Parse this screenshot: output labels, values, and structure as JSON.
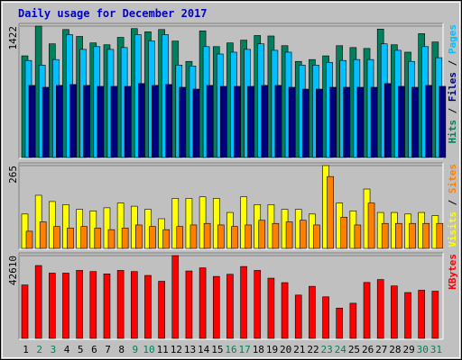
{
  "chart_data": {
    "type": "bar",
    "title": "Daily usage for December 2017",
    "categories": [
      "1",
      "2",
      "3",
      "4",
      "5",
      "6",
      "7",
      "8",
      "9",
      "10",
      "11",
      "12",
      "13",
      "14",
      "15",
      "16",
      "17",
      "18",
      "19",
      "20",
      "21",
      "22",
      "23",
      "24",
      "25",
      "26",
      "27",
      "28",
      "29",
      "30",
      "31"
    ],
    "weekend_days": [
      "2",
      "3",
      "9",
      "10",
      "16",
      "17",
      "23",
      "24",
      "30",
      "31"
    ],
    "panels": [
      {
        "id": "hits",
        "ymax_label": "1422",
        "ylim": [
          0,
          1422
        ],
        "legend": [
          {
            "label": "Pages",
            "color": "#00c0ff"
          },
          {
            "label": "Files",
            "color": "#00007f"
          },
          {
            "label": "Hits",
            "color": "#00805c"
          }
        ],
        "series": [
          {
            "name": "Hits",
            "color": "#00805c",
            "values": [
              1100,
              1422,
              1230,
              1385,
              1310,
              1240,
              1220,
              1300,
              1395,
              1360,
              1385,
              1260,
              1040,
              1370,
              1200,
              1240,
              1270,
              1320,
              1315,
              1210,
              1040,
              1060,
              1100,
              1210,
              1190,
              1180,
              1390,
              1220,
              1140,
              1340,
              1250
            ]
          },
          {
            "name": "Pages",
            "color": "#00c0ff",
            "values": [
              1050,
              1000,
              1060,
              1330,
              1170,
              1200,
              1170,
              1190,
              1330,
              1260,
              1330,
              1000,
              990,
              1200,
              1120,
              1140,
              1170,
              1230,
              1160,
              1140,
              1000,
              1000,
              1030,
              1050,
              1060,
              1060,
              1230,
              1160,
              1040,
              1200,
              1080
            ]
          },
          {
            "name": "Files",
            "color": "#00007f",
            "values": [
              780,
              760,
              780,
              790,
              780,
              770,
              770,
              770,
              800,
              780,
              790,
              760,
              740,
              780,
              770,
              770,
              770,
              780,
              780,
              760,
              740,
              740,
              760,
              760,
              760,
              760,
              800,
              770,
              760,
              780,
              770
            ]
          }
        ]
      },
      {
        "id": "visits",
        "ymax_label": "265",
        "ylim": [
          0,
          265
        ],
        "legend": [
          {
            "label": "Sites",
            "color": "#ff8000"
          },
          {
            "label": "Visits",
            "color": "#ffff00"
          }
        ],
        "series": [
          {
            "name": "Visits",
            "color": "#ffff00",
            "values": [
              110,
              170,
              150,
              140,
              125,
              120,
              130,
              145,
              135,
              125,
              95,
              160,
              160,
              165,
              160,
              115,
              165,
              140,
              140,
              125,
              125,
              110,
              265,
              145,
              120,
              190,
              115,
              115,
              110,
              115,
              105
            ]
          },
          {
            "name": "Sites",
            "color": "#ff8000",
            "values": [
              55,
              85,
              70,
              65,
              70,
              65,
              60,
              65,
              75,
              70,
              60,
              70,
              75,
              80,
              75,
              70,
              75,
              90,
              80,
              85,
              90,
              75,
              230,
              100,
              75,
              145,
              80,
              80,
              80,
              80,
              80
            ]
          }
        ]
      },
      {
        "id": "kbytes",
        "ymax_label": "42610",
        "ylim": [
          0,
          42610
        ],
        "legend": [
          {
            "label": "KBytes",
            "color": "#ff0000"
          }
        ],
        "series": [
          {
            "name": "KBytes",
            "color": "#ff0000",
            "values": [
              27500,
              37500,
              33600,
              33600,
              35000,
              34400,
              33200,
              35000,
              34400,
              32400,
              29400,
              42610,
              34700,
              36300,
              31900,
              33000,
              37000,
              35000,
              31000,
              28700,
              22300,
              26800,
              21400,
              15600,
              18100,
              28800,
              30300,
              27000,
              23600,
              24800,
              24300
            ]
          }
        ]
      }
    ]
  }
}
